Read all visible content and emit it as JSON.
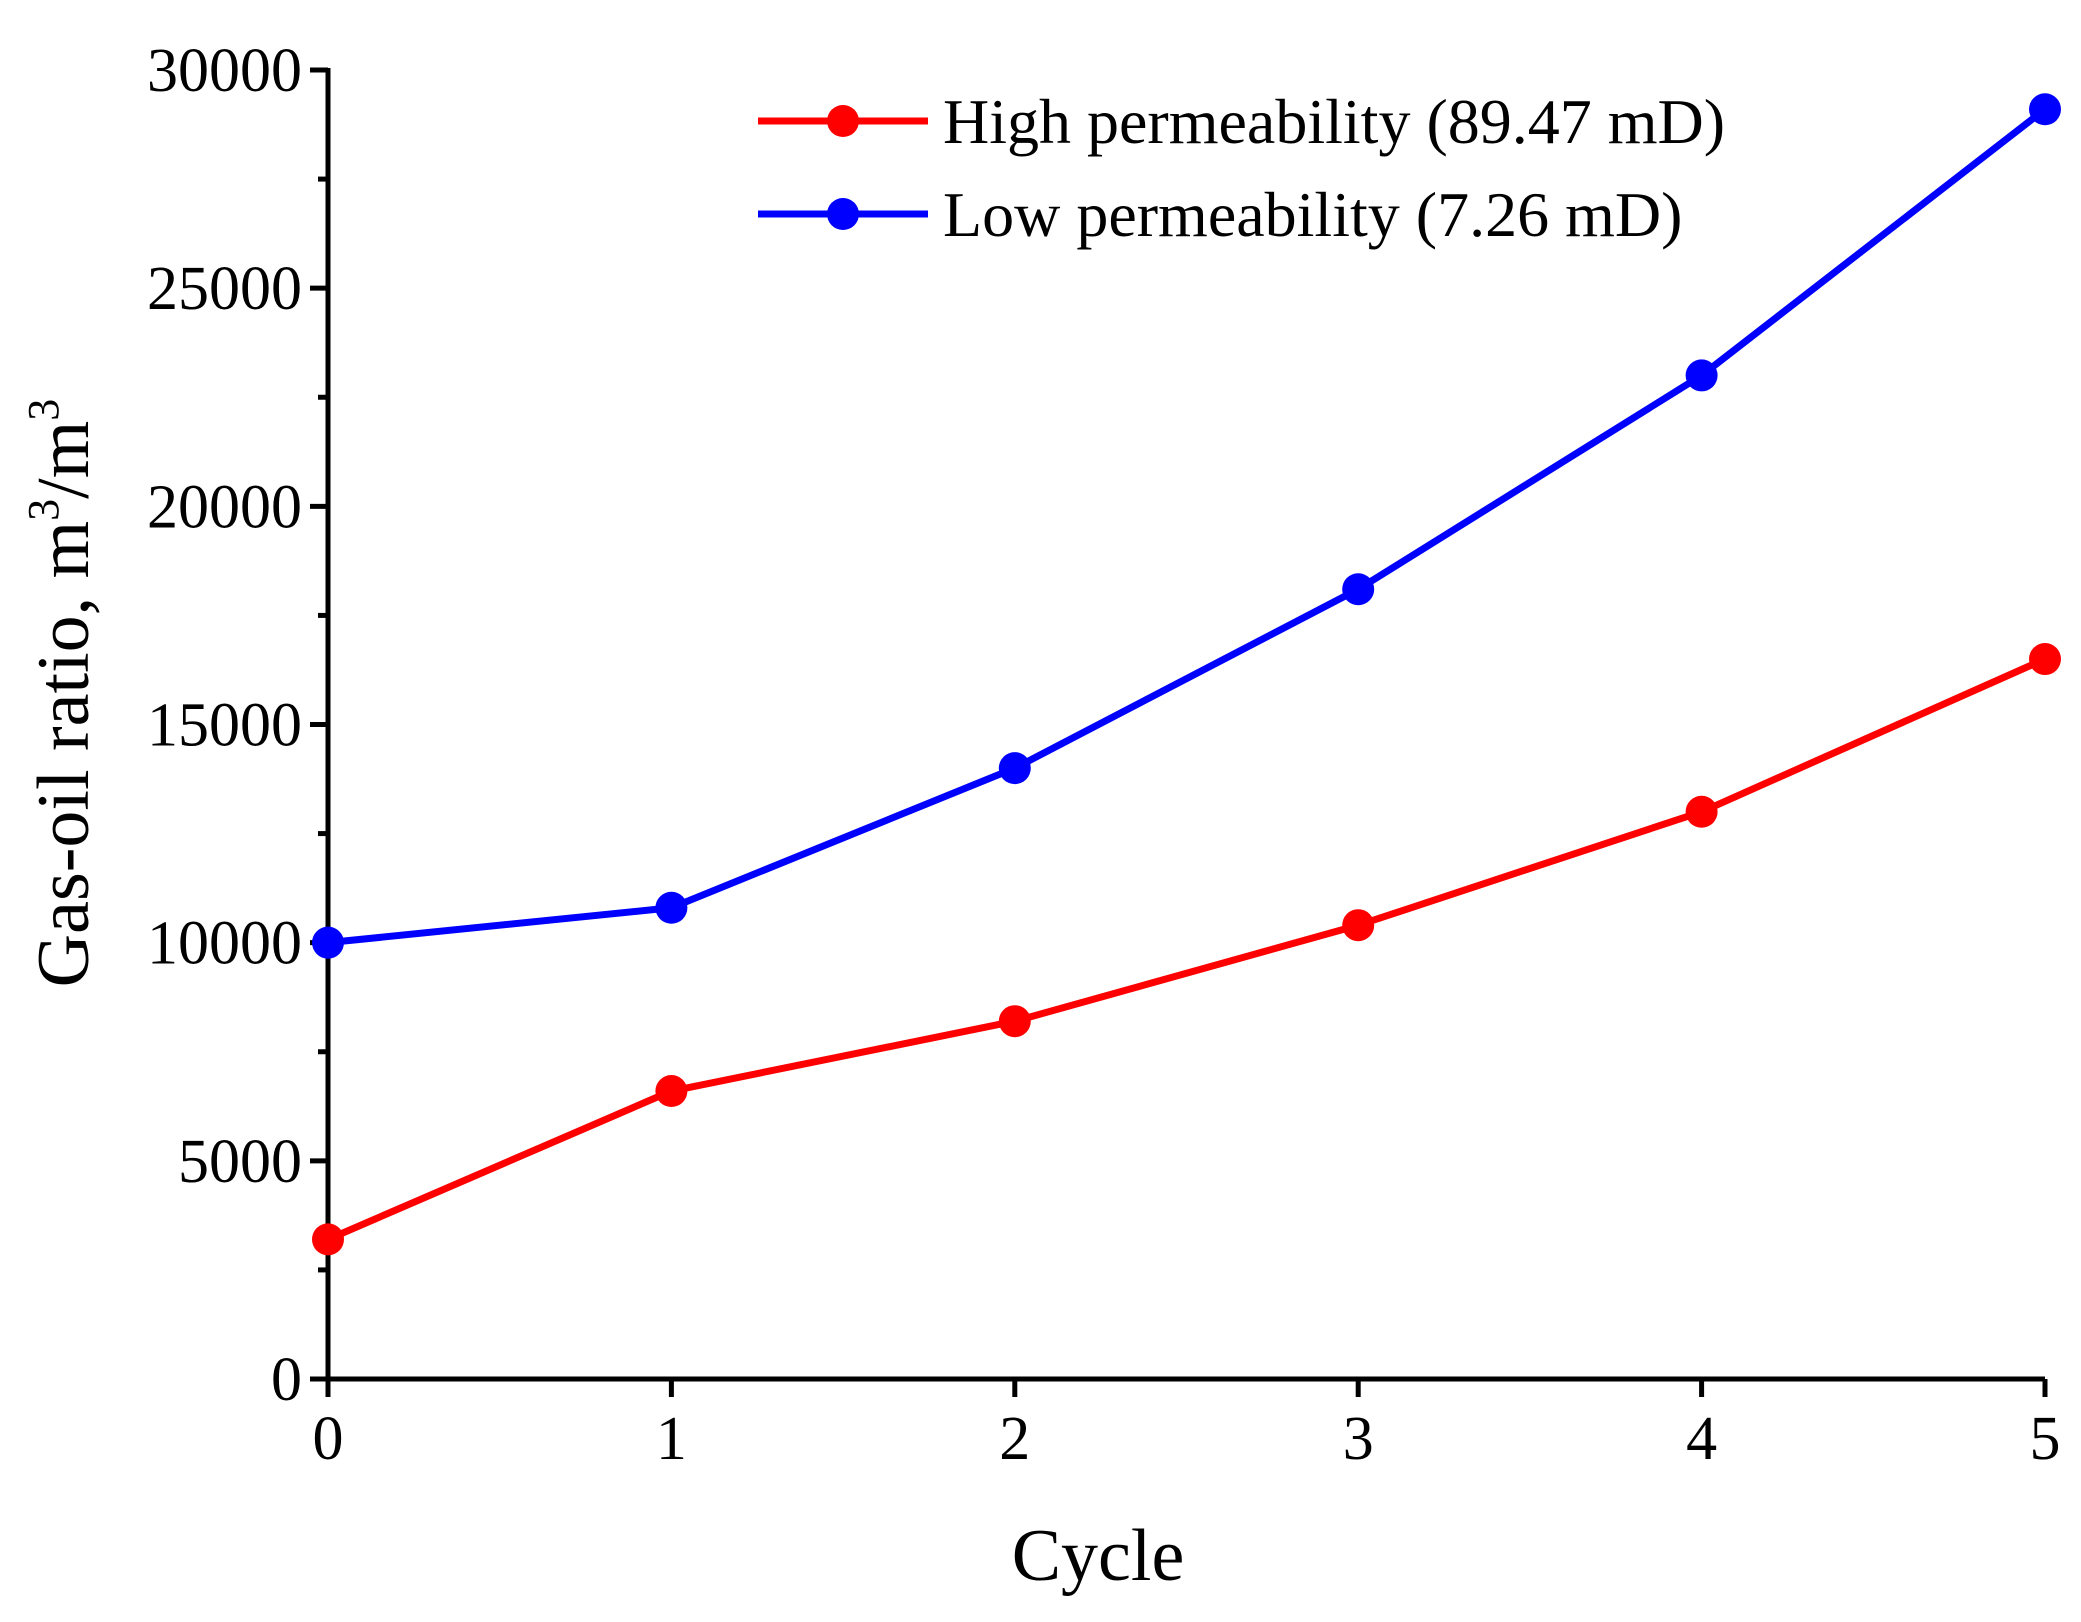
{
  "chart_data": {
    "type": "line",
    "title": "",
    "xlabel": "Cycle",
    "ylabel": "Gas-oil ratio, m",
    "ylabel_unit_mid": "/m",
    "ylabel_superscript": "3",
    "x": [
      0,
      1,
      2,
      3,
      4,
      5
    ],
    "x_tick_labels": [
      "0",
      "1",
      "2",
      "3",
      "4",
      "5"
    ],
    "xlim": [
      0,
      5
    ],
    "ylim": [
      0,
      30000
    ],
    "y_ticks": [
      0,
      5000,
      10000,
      15000,
      20000,
      25000,
      30000
    ],
    "y_tick_labels": [
      "0",
      "5000",
      "10000",
      "15000",
      "20000",
      "25000",
      "30000"
    ],
    "grid": false,
    "legend_position": "top-right",
    "series": [
      {
        "name": "High permeability (89.47 mD)",
        "color": "#ff0000",
        "values": [
          3200,
          6600,
          8200,
          10400,
          13000,
          16500
        ]
      },
      {
        "name": "Low permeability (7.26 mD)",
        "color": "#0000ff",
        "values": [
          10000,
          10800,
          14000,
          18100,
          23000,
          29100
        ]
      }
    ]
  }
}
